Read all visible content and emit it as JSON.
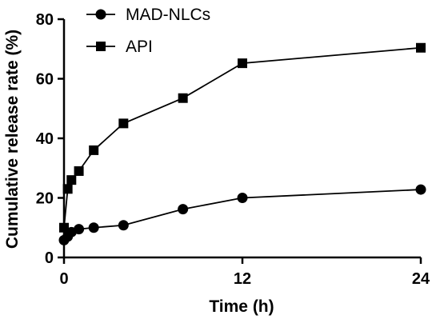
{
  "chart_data": {
    "type": "line",
    "xlabel": "Time (h)",
    "ylabel": "Cumulative release rate (%)",
    "xlim": [
      0,
      24
    ],
    "ylim": [
      0,
      80
    ],
    "xticks": [
      0,
      12,
      24
    ],
    "yticks": [
      0,
      20,
      40,
      60,
      80
    ],
    "grid": false,
    "legend_position": "top-left",
    "series": [
      {
        "name": "MAD-NLCs",
        "marker": "circle",
        "color": "#000000",
        "x": [
          0,
          0.25,
          0.5,
          1,
          2,
          4,
          8,
          12,
          24
        ],
        "y": [
          5.8,
          7.0,
          8.5,
          9.5,
          10.0,
          10.8,
          16.2,
          20.0,
          22.8
        ]
      },
      {
        "name": "API",
        "marker": "square",
        "color": "#000000",
        "x": [
          0,
          0.25,
          0.5,
          1,
          2,
          4,
          8,
          12,
          24
        ],
        "y": [
          10.0,
          23.0,
          26.0,
          29.0,
          36.0,
          45.0,
          53.5,
          65.2,
          70.4
        ]
      }
    ]
  }
}
